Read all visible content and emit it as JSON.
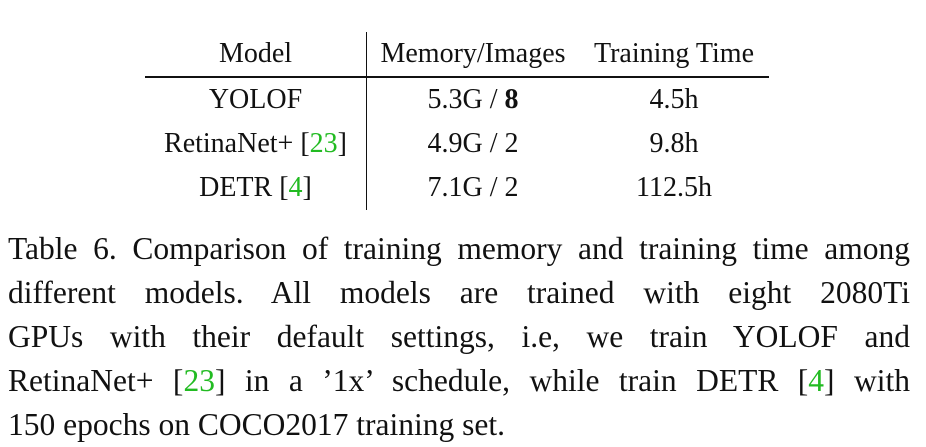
{
  "table": {
    "headers": [
      "Model",
      "Memory/Images",
      "Training Time"
    ],
    "rows": [
      {
        "model": "YOLOF",
        "model_cite": "",
        "memory": "5.3G / ",
        "images": "8",
        "images_bold": true,
        "time": "4.5h"
      },
      {
        "model": "RetinaNet+ [",
        "model_cite": "23",
        "model_close": "]",
        "memory": "4.9G / ",
        "images": "2",
        "time": "9.8h"
      },
      {
        "model": "DETR [",
        "model_cite": "4",
        "model_close": "]",
        "memory": "7.1G / ",
        "images": "2",
        "time": "112.5h"
      }
    ]
  },
  "caption": {
    "line1": "Table 6. Comparison of training memory and training time among",
    "line2": "different models.  All models are trained with eight 2080Ti",
    "line3": "GPUs with their default settings, i.e, we train YOLOF and",
    "line4_a": "RetinaNet+ [",
    "line4_cite": "23",
    "line4_b": "] in a ’1x’ schedule, while train DETR [",
    "line4_cite2": "4",
    "line4_c": "] with",
    "line5": "150 epochs on COCO2017 training set."
  },
  "colors": {
    "citation": "#22bb22",
    "text": "#111111"
  }
}
